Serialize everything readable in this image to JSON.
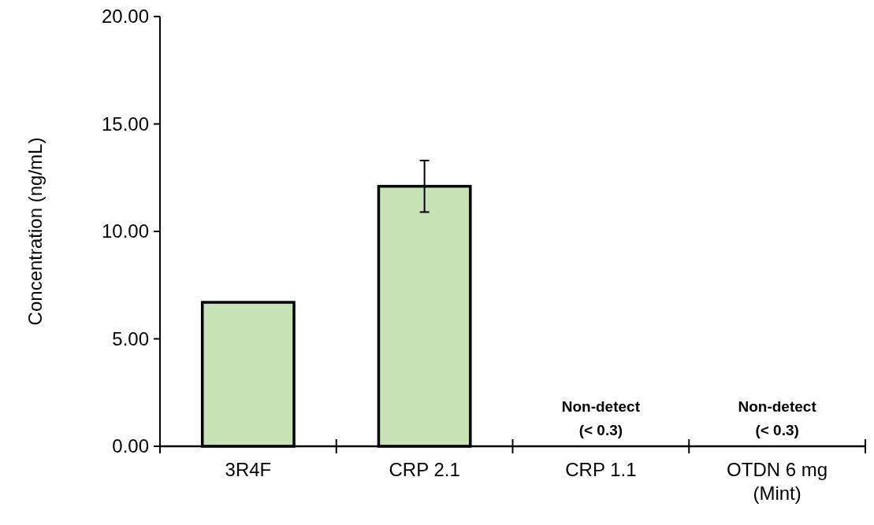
{
  "chart_data": {
    "type": "bar",
    "ylabel": "Concentration (ng/mL)",
    "categories": [
      "3R4F",
      "CRP 2.1",
      "CRP 1.1",
      "OTDN 6 mg\n(Mint)"
    ],
    "values": [
      6.7,
      12.1,
      null,
      null
    ],
    "errors": [
      null,
      1.2,
      null,
      null
    ],
    "value_labels": [
      null,
      null,
      "Non-detect\n(< 0.3)",
      "Non-detect\n(< 0.3)"
    ],
    "color": "#c6e3b5",
    "ylim": [
      0,
      20
    ],
    "yticks": [
      {
        "value": 0,
        "label": "0.00"
      },
      {
        "value": 5,
        "label": "5.00"
      },
      {
        "value": 10,
        "label": "10.00"
      },
      {
        "value": 15,
        "label": "15.00"
      },
      {
        "value": 20,
        "label": "20.00"
      }
    ],
    "grid": false
  }
}
